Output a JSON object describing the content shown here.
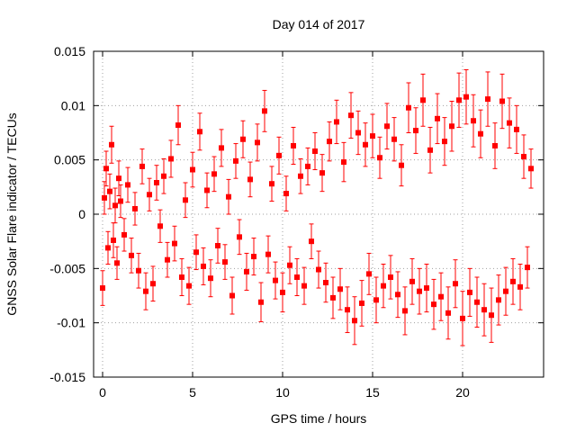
{
  "chart_data": {
    "type": "scatter",
    "title": "Day 014 of 2017",
    "xlabel": "GPS time / hours",
    "ylabel": "GNSS Solar Flare indicator / TECUs",
    "xlim": [
      -0.5,
      24.5
    ],
    "ylim": [
      -0.015,
      0.015
    ],
    "x_ticks": [
      0,
      5,
      10,
      15,
      20
    ],
    "x_tick_labels": [
      "0",
      "5",
      "10",
      "15",
      "20"
    ],
    "y_ticks": [
      -0.015,
      -0.01,
      -0.005,
      0,
      0.005,
      0.01,
      0.015
    ],
    "y_tick_labels": [
      "-0.015",
      "-0.01",
      "-0.005",
      "0",
      "0.005",
      "0.01",
      "0.015"
    ],
    "grid": true,
    "series_color": "#ff0000",
    "marker": "square",
    "error_bars": true,
    "series": [
      {
        "x": [
          0.0,
          0.1,
          0.2,
          0.3,
          0.4,
          0.5,
          0.6,
          0.7,
          0.8,
          0.9,
          1.0,
          1.2,
          1.4,
          1.6,
          1.8,
          2.0,
          2.2,
          2.4,
          2.6,
          2.8,
          3.0,
          3.2,
          3.4,
          3.6,
          3.8,
          4.0,
          4.2,
          4.4,
          4.6,
          4.8,
          5.0,
          5.2,
          5.4,
          5.6,
          5.8,
          6.0,
          6.2,
          6.4,
          6.6,
          6.8,
          7.0,
          7.2,
          7.4,
          7.6,
          7.8,
          8.0,
          8.2,
          8.4,
          8.6,
          8.8,
          9.0,
          9.2,
          9.4,
          9.6,
          9.8,
          10.0,
          10.2,
          10.4,
          10.6,
          10.8,
          11.0,
          11.2,
          11.4,
          11.6,
          11.8,
          12.0,
          12.2,
          12.4,
          12.6,
          12.8,
          13.0,
          13.2,
          13.4,
          13.6,
          13.8,
          14.0,
          14.2,
          14.4,
          14.6,
          14.8,
          15.0,
          15.2,
          15.4,
          15.6,
          15.8,
          16.0,
          16.2,
          16.4,
          16.6,
          16.8,
          17.0,
          17.2,
          17.4,
          17.6,
          17.8,
          18.0,
          18.2,
          18.4,
          18.6,
          18.8,
          19.0,
          19.2,
          19.4,
          19.6,
          19.8,
          20.0,
          20.2,
          20.4,
          20.6,
          20.8,
          21.0,
          21.2,
          21.4,
          21.6,
          21.8,
          22.0,
          22.2,
          22.4,
          22.6,
          22.8,
          23.0,
          23.2,
          23.4,
          23.6,
          23.8
        ],
        "y": [
          -0.0068,
          0.0015,
          0.0042,
          -0.0031,
          0.0021,
          0.0064,
          -0.0024,
          0.0008,
          -0.0045,
          0.0033,
          0.0012,
          -0.0019,
          0.0027,
          -0.0038,
          0.0005,
          -0.0052,
          0.0044,
          -0.0071,
          0.0018,
          -0.0064,
          0.0029,
          -0.0011,
          0.0035,
          -0.0042,
          0.0051,
          -0.0027,
          0.0082,
          -0.0058,
          0.0013,
          -0.0066,
          0.0041,
          -0.0035,
          0.0076,
          -0.0048,
          0.0022,
          -0.0059,
          0.0037,
          -0.0029,
          0.0061,
          -0.0044,
          0.0016,
          -0.0075,
          0.0049,
          -0.0021,
          0.0069,
          -0.0053,
          0.0032,
          -0.0039,
          0.0066,
          -0.0081,
          0.0095,
          -0.0037,
          0.0028,
          -0.0061,
          0.0054,
          -0.0072,
          0.0019,
          -0.0047,
          0.0063,
          -0.0058,
          0.0035,
          -0.0066,
          0.0044,
          -0.0025,
          0.0058,
          -0.0051,
          0.0038,
          -0.0063,
          0.0067,
          -0.0077,
          0.0085,
          -0.0069,
          0.0048,
          -0.0088,
          0.0091,
          -0.0098,
          0.0075,
          -0.0082,
          0.0064,
          -0.0055,
          0.0072,
          -0.0079,
          0.0052,
          -0.0066,
          0.0081,
          -0.0058,
          0.0069,
          -0.0074,
          0.0045,
          -0.0089,
          0.0098,
          -0.0062,
          0.0077,
          -0.0071,
          0.0105,
          -0.0068,
          0.0059,
          -0.0083,
          0.0088,
          -0.0076,
          0.0067,
          -0.0091,
          0.0081,
          -0.0064,
          0.0105,
          -0.0096,
          0.0108,
          -0.0072,
          0.0086,
          -0.0081,
          0.0074,
          -0.0088,
          0.0106,
          -0.0093,
          0.0063,
          -0.0079,
          0.0104,
          -0.0071,
          0.0084,
          -0.0062,
          0.0078,
          -0.0067,
          0.0053,
          -0.0049,
          0.0042
        ],
        "err": [
          0.0016,
          0.0015,
          0.0016,
          0.0015,
          0.0016,
          0.0017,
          0.0016,
          0.0016,
          0.0015,
          0.0016,
          0.0015,
          0.0015,
          0.0016,
          0.0016,
          0.0015,
          0.0016,
          0.0016,
          0.0017,
          0.0015,
          0.0016,
          0.0016,
          0.0015,
          0.0016,
          0.0016,
          0.0017,
          0.0016,
          0.0018,
          0.0017,
          0.0016,
          0.0017,
          0.0016,
          0.0016,
          0.0017,
          0.0017,
          0.0016,
          0.0017,
          0.0016,
          0.0016,
          0.0017,
          0.0016,
          0.0016,
          0.0017,
          0.0016,
          0.0016,
          0.0017,
          0.0017,
          0.0016,
          0.0017,
          0.0017,
          0.0018,
          0.0019,
          0.0017,
          0.0016,
          0.0017,
          0.0017,
          0.0018,
          0.0016,
          0.0017,
          0.0017,
          0.0017,
          0.0016,
          0.0017,
          0.0017,
          0.0016,
          0.0017,
          0.0017,
          0.0017,
          0.0018,
          0.0018,
          0.0019,
          0.002,
          0.0019,
          0.0018,
          0.0021,
          0.0021,
          0.0022,
          0.002,
          0.0021,
          0.002,
          0.0019,
          0.002,
          0.0021,
          0.0019,
          0.002,
          0.0021,
          0.002,
          0.002,
          0.0021,
          0.0019,
          0.0022,
          0.0023,
          0.0021,
          0.0021,
          0.0021,
          0.0024,
          0.0022,
          0.0021,
          0.0023,
          0.0023,
          0.0022,
          0.0022,
          0.0024,
          0.0023,
          0.0022,
          0.0025,
          0.0025,
          0.0025,
          0.0022,
          0.0024,
          0.0023,
          0.0022,
          0.0024,
          0.0025,
          0.0025,
          0.0021,
          0.0023,
          0.0025,
          0.0022,
          0.0023,
          0.0021,
          0.0022,
          0.0021,
          0.002,
          0.0019,
          0.0018
        ]
      }
    ]
  }
}
